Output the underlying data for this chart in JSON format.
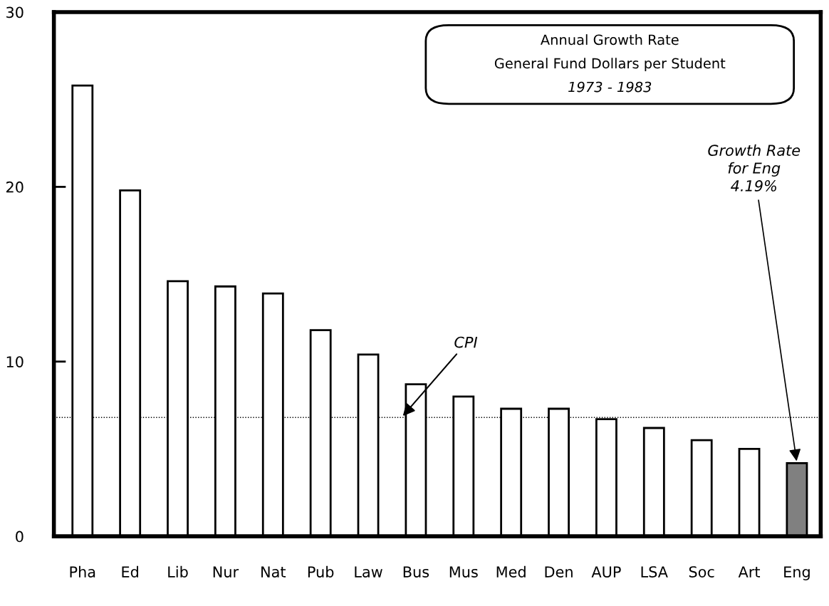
{
  "chart_data": {
    "type": "bar",
    "title": "Annual Growth Rate",
    "subtitle": "General Fund Dollars per Student",
    "categories": [
      "Pha",
      "Ed",
      "Lib",
      "Nur",
      "Nat",
      "Pub",
      "Law",
      "Bus",
      "Mus",
      "Med",
      "Den",
      "AUP",
      "LSA",
      "Soc",
      "Art",
      "Eng"
    ],
    "values": [
      25.8,
      19.8,
      14.6,
      14.3,
      13.9,
      11.8,
      10.4,
      8.7,
      8.0,
      7.3,
      7.3,
      6.7,
      6.2,
      5.5,
      5.0,
      4.19
    ],
    "colors": [
      "#ffffff",
      "#ffffff",
      "#ffffff",
      "#ffffff",
      "#ffffff",
      "#ffffff",
      "#ffffff",
      "#ffffff",
      "#ffffff",
      "#ffffff",
      "#ffffff",
      "#ffffff",
      "#ffffff",
      "#ffffff",
      "#ffffff",
      "#808080"
    ],
    "ylim": [
      0,
      30
    ],
    "yticks": [
      0,
      10,
      20,
      30
    ],
    "grid": false,
    "legend": false,
    "ref_lines": [
      {
        "axis": "y",
        "value": 6.8,
        "label": "CPI",
        "line_style": "dotted",
        "color": "#000000"
      }
    ],
    "annotations": [
      "1973 - 1983",
      {
        "text": "Growth Rate\nfor Eng\n4.19%",
        "x": "Eng",
        "y": 4.19
      }
    ]
  }
}
